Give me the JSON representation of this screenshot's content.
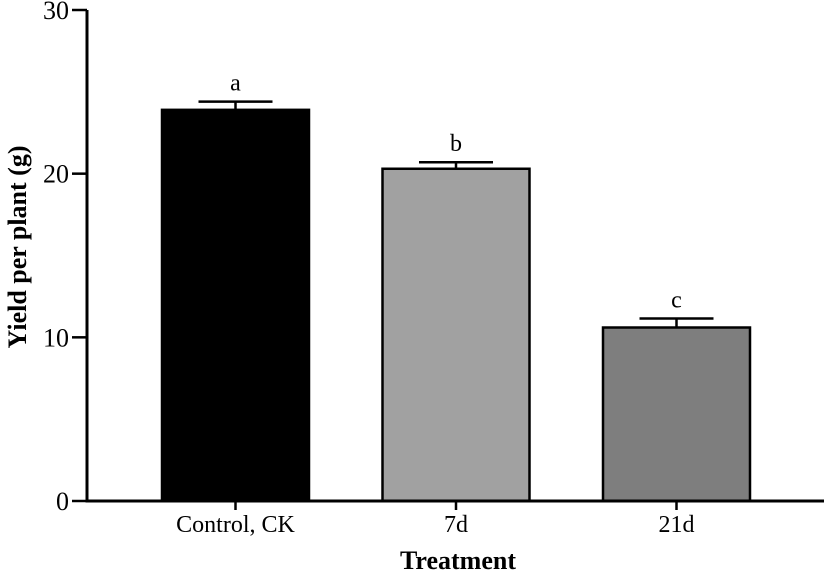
{
  "chart_data": {
    "type": "bar",
    "title": "",
    "xlabel": "Treatment",
    "ylabel": "Yield per plant (g)",
    "categories": [
      "Control, CK",
      "7d",
      "21d"
    ],
    "values": [
      23.9,
      20.3,
      10.6
    ],
    "errors": [
      0.5,
      0.4,
      0.55
    ],
    "sig_letters": [
      "a",
      "b",
      "c"
    ],
    "bar_colors": [
      "#000000",
      "#a1a1a1",
      "#7e7e7e"
    ],
    "bar_border_color": "#000000",
    "axis_color": "#000000",
    "background_color": "#ffffff",
    "ylim": [
      0,
      30
    ],
    "yticks": [
      0,
      10,
      20,
      30
    ],
    "grid": false,
    "legend": "none",
    "error_bar_direction": "upper-only"
  }
}
